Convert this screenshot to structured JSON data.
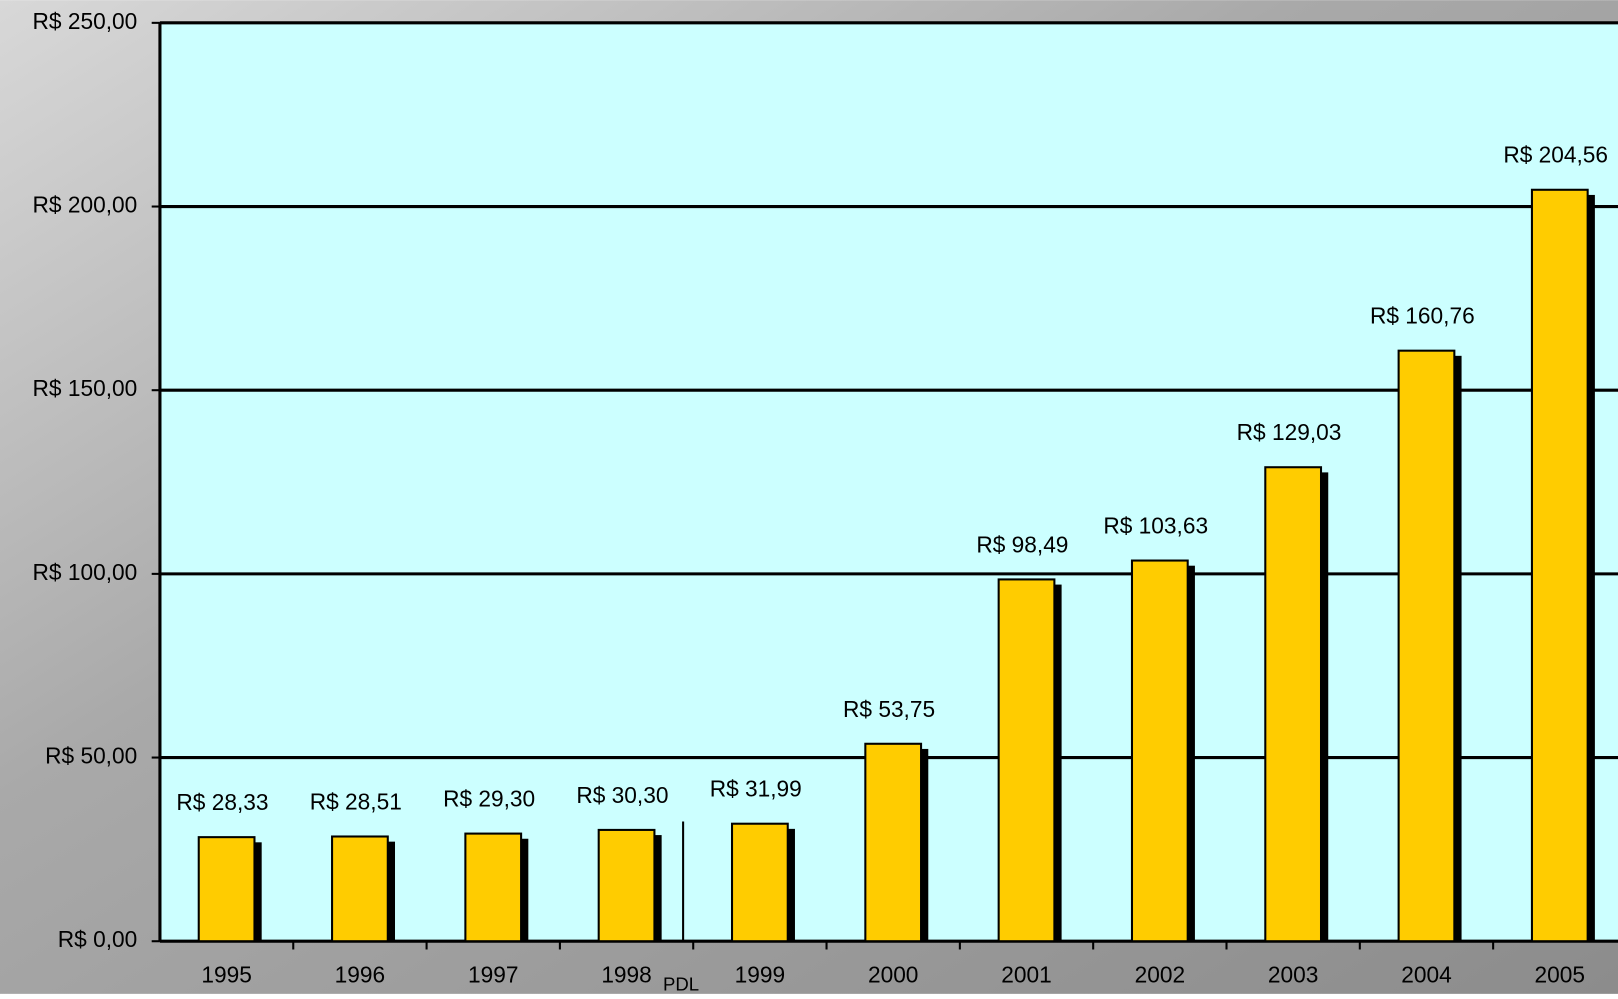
{
  "chart_data": {
    "type": "bar",
    "categories": [
      "1995",
      "1996",
      "1997",
      "1998",
      "1999",
      "2000",
      "2001",
      "2002",
      "2003",
      "2004",
      "2005"
    ],
    "values": [
      28.33,
      28.51,
      29.3,
      30.3,
      31.99,
      53.75,
      98.49,
      103.63,
      129.03,
      160.76,
      204.56
    ],
    "value_labels": [
      "R$ 28,33",
      "R$ 28,51",
      "R$ 29,30",
      "R$ 30,30",
      "R$ 31,99",
      "R$ 53,75",
      "R$ 98,49",
      "R$ 103,63",
      "R$ 129,03",
      "R$ 160,76",
      "R$ 204,56"
    ],
    "color": "#ffcc00",
    "ylim": [
      0,
      250
    ],
    "yticks": [
      {
        "value": 0,
        "label": "R$ 0,00"
      },
      {
        "value": 50,
        "label": "R$ 50,00"
      },
      {
        "value": 100,
        "label": "R$ 100,00"
      },
      {
        "value": 150,
        "label": "R$ 150,00"
      },
      {
        "value": 200,
        "label": "R$ 200,00"
      },
      {
        "value": 250,
        "label": "R$ 250,00"
      }
    ],
    "grid": true,
    "annotation": "PDL"
  }
}
